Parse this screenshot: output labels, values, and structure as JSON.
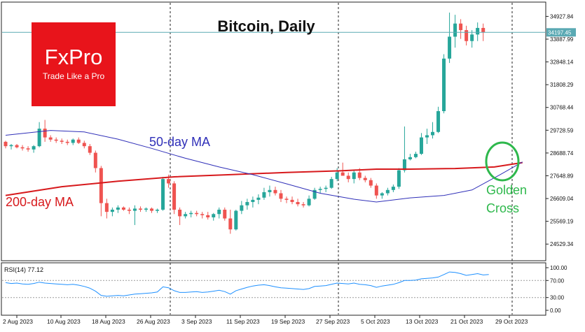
{
  "chart_data": [
    {
      "type": "candlestick",
      "title": "Bitcoin, Daily",
      "logo": {
        "brand": "FxPro",
        "tagline": "Trade Like a Pro",
        "color": "#e8141b"
      },
      "current_price_label": "34197.45",
      "current_price": 34197.45,
      "y_ticks": [
        "34927.84",
        "33887.99",
        "32848.14",
        "31808.29",
        "30768.44",
        "29728.59",
        "28688.74",
        "27648.89",
        "26609.04",
        "25569.19",
        "24529.34"
      ],
      "y_tick_values": [
        34927.84,
        33887.99,
        32848.14,
        31808.29,
        30768.44,
        29728.59,
        28688.74,
        27648.89,
        26609.04,
        25569.19,
        24529.34
      ],
      "ylim": [
        23930,
        35420
      ],
      "x_ticks": [
        "2 Aug 2023",
        "10 Aug 2023",
        "18 Aug 2023",
        "26 Aug 2023",
        "3 Sep 2023",
        "11 Sep 2023",
        "19 Sep 2023",
        "27 Sep 2023",
        "5 Oct 2023",
        "13 Oct 2023",
        "21 Oct 2023",
        "29 Oct 2023"
      ],
      "annotations": {
        "ma50": "50-day MA",
        "ma200": "200-day MA",
        "golden_cross": "Golden Cross"
      },
      "colors": {
        "up": "#26a69a",
        "down": "#ef5350",
        "ma50": "#2f2fb8",
        "ma200": "#d7191c",
        "golden_cross": "#2eb84c",
        "price_line": "#5aa9b3"
      },
      "candles": [
        [
          29200,
          29250,
          28900,
          29000
        ],
        [
          29000,
          29100,
          28850,
          29050
        ],
        [
          29050,
          29100,
          28900,
          28950
        ],
        [
          28950,
          29050,
          28800,
          28900
        ],
        [
          28900,
          29000,
          28750,
          28850
        ],
        [
          28850,
          29050,
          28700,
          29000
        ],
        [
          29000,
          30100,
          28950,
          29800
        ],
        [
          29800,
          30200,
          29200,
          29400
        ],
        [
          29400,
          29500,
          29200,
          29300
        ],
        [
          29300,
          29400,
          29150,
          29250
        ],
        [
          29250,
          29350,
          29100,
          29200
        ],
        [
          29200,
          29300,
          29050,
          29150
        ],
        [
          29150,
          29350,
          29050,
          29300
        ],
        [
          29300,
          29400,
          29100,
          29150
        ],
        [
          29150,
          29250,
          28900,
          29000
        ],
        [
          29000,
          29100,
          28600,
          28700
        ],
        [
          28700,
          28800,
          27800,
          28000
        ],
        [
          28000,
          28100,
          25800,
          26400
        ],
        [
          26400,
          26600,
          25700,
          26000
        ],
        [
          26000,
          26200,
          25800,
          26100
        ],
        [
          26100,
          26300,
          25950,
          26200
        ],
        [
          26200,
          26250,
          26050,
          26100
        ],
        [
          26100,
          26200,
          25900,
          26050
        ],
        [
          26050,
          26300,
          25400,
          26150
        ],
        [
          26150,
          26250,
          26000,
          26100
        ],
        [
          26100,
          26200,
          26000,
          26150
        ],
        [
          26150,
          26200,
          25950,
          26050
        ],
        [
          26050,
          26150,
          25950,
          26100
        ],
        [
          26100,
          27600,
          26050,
          27500
        ],
        [
          27500,
          27700,
          27100,
          27300
        ],
        [
          27300,
          27400,
          25900,
          26100
        ],
        [
          26100,
          26200,
          25400,
          25800
        ],
        [
          25800,
          26000,
          25700,
          25900
        ],
        [
          25900,
          26050,
          25750,
          25950
        ],
        [
          25950,
          26050,
          25800,
          25900
        ],
        [
          25900,
          26000,
          25700,
          25850
        ],
        [
          25850,
          26000,
          25650,
          25750
        ],
        [
          25750,
          25950,
          25600,
          25900
        ],
        [
          25900,
          26200,
          25700,
          26100
        ],
        [
          26100,
          26200,
          25600,
          25700
        ],
        [
          25700,
          26100,
          25000,
          25200
        ],
        [
          25200,
          26100,
          25150,
          26050
        ],
        [
          26050,
          26500,
          25900,
          26300
        ],
        [
          26300,
          26600,
          26100,
          26450
        ],
        [
          26450,
          26700,
          26200,
          26550
        ],
        [
          26550,
          26800,
          26350,
          26650
        ],
        [
          26650,
          27100,
          26550,
          26900
        ],
        [
          26900,
          27200,
          26700,
          27000
        ],
        [
          27000,
          27150,
          26750,
          26850
        ],
        [
          26850,
          27000,
          26450,
          26600
        ],
        [
          26600,
          26700,
          26400,
          26550
        ],
        [
          26550,
          26700,
          26350,
          26450
        ],
        [
          26450,
          26600,
          26250,
          26350
        ],
        [
          26350,
          26450,
          26200,
          26300
        ],
        [
          26300,
          26750,
          26250,
          26600
        ],
        [
          26600,
          27100,
          26550,
          27000
        ],
        [
          27000,
          27150,
          26850,
          27050
        ],
        [
          27050,
          27200,
          26900,
          27100
        ],
        [
          27100,
          27600,
          27050,
          27500
        ],
        [
          27500,
          28000,
          27400,
          27800
        ],
        [
          27800,
          28250,
          27700,
          27650
        ],
        [
          27650,
          27800,
          27350,
          27500
        ],
        [
          27500,
          27900,
          27300,
          27800
        ],
        [
          27800,
          28000,
          27450,
          27550
        ],
        [
          27550,
          27650,
          27350,
          27450
        ],
        [
          27450,
          27550,
          27100,
          27200
        ],
        [
          27200,
          27300,
          26600,
          26750
        ],
        [
          26750,
          26900,
          26600,
          26850
        ],
        [
          26850,
          27100,
          26750,
          27000
        ],
        [
          27000,
          27250,
          26900,
          27150
        ],
        [
          27150,
          28000,
          27050,
          27900
        ],
        [
          27900,
          29900,
          27800,
          28400
        ],
        [
          28400,
          28650,
          28350,
          28500
        ],
        [
          28500,
          28750,
          28450,
          28650
        ],
        [
          28650,
          29600,
          28600,
          29400
        ],
        [
          29400,
          29800,
          29100,
          29500
        ],
        [
          29500,
          30100,
          29350,
          29650
        ],
        [
          29650,
          30800,
          29600,
          30600
        ],
        [
          30600,
          33200,
          30500,
          33000
        ],
        [
          33000,
          35100,
          32800,
          34000
        ],
        [
          34000,
          35000,
          33500,
          34600
        ],
        [
          34600,
          34800,
          33900,
          34300
        ],
        [
          34300,
          34500,
          33600,
          33800
        ],
        [
          33800,
          34300,
          33500,
          34100
        ],
        [
          34100,
          34650,
          33800,
          34400
        ],
        [
          34400,
          34600,
          33800,
          34200
        ]
      ],
      "ma50": [
        [
          0,
          29500
        ],
        [
          8,
          29720
        ],
        [
          14,
          29650
        ],
        [
          20,
          29320
        ],
        [
          26,
          28900
        ],
        [
          32,
          28450
        ],
        [
          38,
          28050
        ],
        [
          44,
          27700
        ],
        [
          50,
          27280
        ],
        [
          56,
          26850
        ],
        [
          62,
          26580
        ],
        [
          66,
          26450
        ],
        [
          72,
          26640
        ],
        [
          78,
          26750
        ],
        [
          83,
          27000
        ],
        [
          88,
          27700
        ],
        [
          92,
          28280
        ]
      ],
      "ma200": [
        [
          0,
          26750
        ],
        [
          10,
          27150
        ],
        [
          20,
          27400
        ],
        [
          30,
          27600
        ],
        [
          40,
          27700
        ],
        [
          50,
          27800
        ],
        [
          60,
          27880
        ],
        [
          66,
          27950
        ],
        [
          72,
          27950
        ],
        [
          80,
          27980
        ],
        [
          87,
          28050
        ],
        [
          92,
          28250
        ]
      ],
      "rsi_label": "RSI(14) 77.12",
      "rsi_ticks": [
        "100.00",
        "70.00",
        "30.00",
        "0.00"
      ],
      "rsi_tick_values": [
        100,
        70,
        30,
        0
      ],
      "rsi_levels": [
        70,
        30
      ],
      "rsi": [
        65,
        63,
        64,
        62,
        61,
        63,
        66,
        64,
        63,
        62,
        61,
        60,
        61,
        59,
        56,
        52,
        45,
        35,
        33,
        34,
        35,
        34,
        36,
        38,
        39,
        40,
        41,
        43,
        55,
        53,
        46,
        42,
        42,
        43,
        44,
        42,
        43,
        45,
        47,
        44,
        38,
        46,
        50,
        54,
        57,
        59,
        60,
        58,
        55,
        53,
        52,
        51,
        50,
        49,
        51,
        56,
        57,
        58,
        61,
        64,
        63,
        62,
        64,
        61,
        60,
        58,
        54,
        57,
        59,
        61,
        65,
        70,
        70,
        71,
        74,
        75,
        76,
        78,
        84,
        90,
        89,
        86,
        82,
        84,
        86,
        83,
        84
      ]
    }
  ]
}
